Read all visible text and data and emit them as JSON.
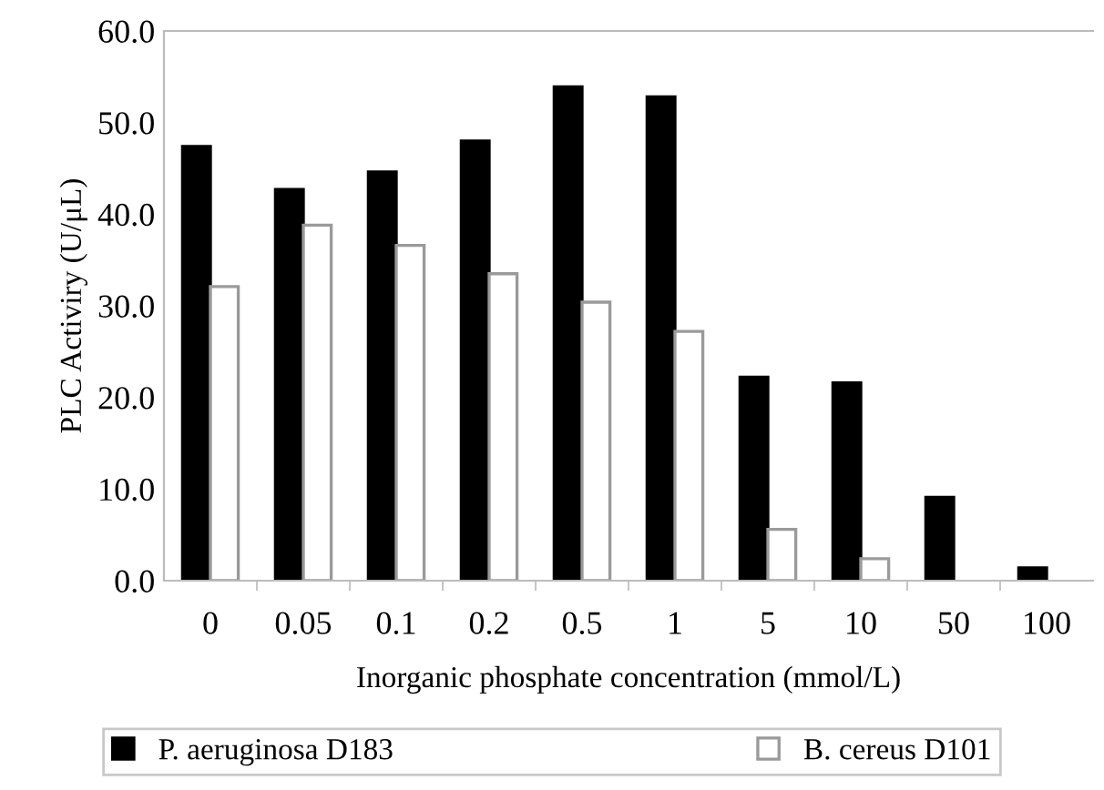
{
  "chart_data": {
    "type": "bar",
    "xlabel": "Inorganic phosphate concentration (mmol/L)",
    "ylabel": "PLC Activiry (U/μL)",
    "categories": [
      "0",
      "0.05",
      "0.1",
      "0.2",
      "0.5",
      "1",
      "5",
      "10",
      "50",
      "100"
    ],
    "series": [
      {
        "name": "P. aeruginosa D183",
        "color": "#000000",
        "values": [
          47.4,
          42.7,
          44.6,
          48.0,
          53.9,
          52.8,
          22.2,
          21.6,
          9.1,
          1.4
        ]
      },
      {
        "name": "B. cereus D101",
        "color": "#ffffff",
        "values": [
          32.1,
          38.8,
          36.6,
          33.5,
          30.4,
          27.2,
          5.6,
          2.4,
          null,
          null
        ]
      }
    ],
    "ylim": [
      0,
      60
    ],
    "yticks": [
      {
        "value": 0,
        "label": "0.0"
      },
      {
        "value": 10,
        "label": "10.0"
      },
      {
        "value": 20,
        "label": "20.0"
      },
      {
        "value": 30,
        "label": "30.0"
      },
      {
        "value": 40,
        "label": "40.0"
      },
      {
        "value": 50,
        "label": "50.0"
      },
      {
        "value": 60,
        "label": "60.0"
      }
    ],
    "grid": false,
    "legend": "bottom"
  }
}
